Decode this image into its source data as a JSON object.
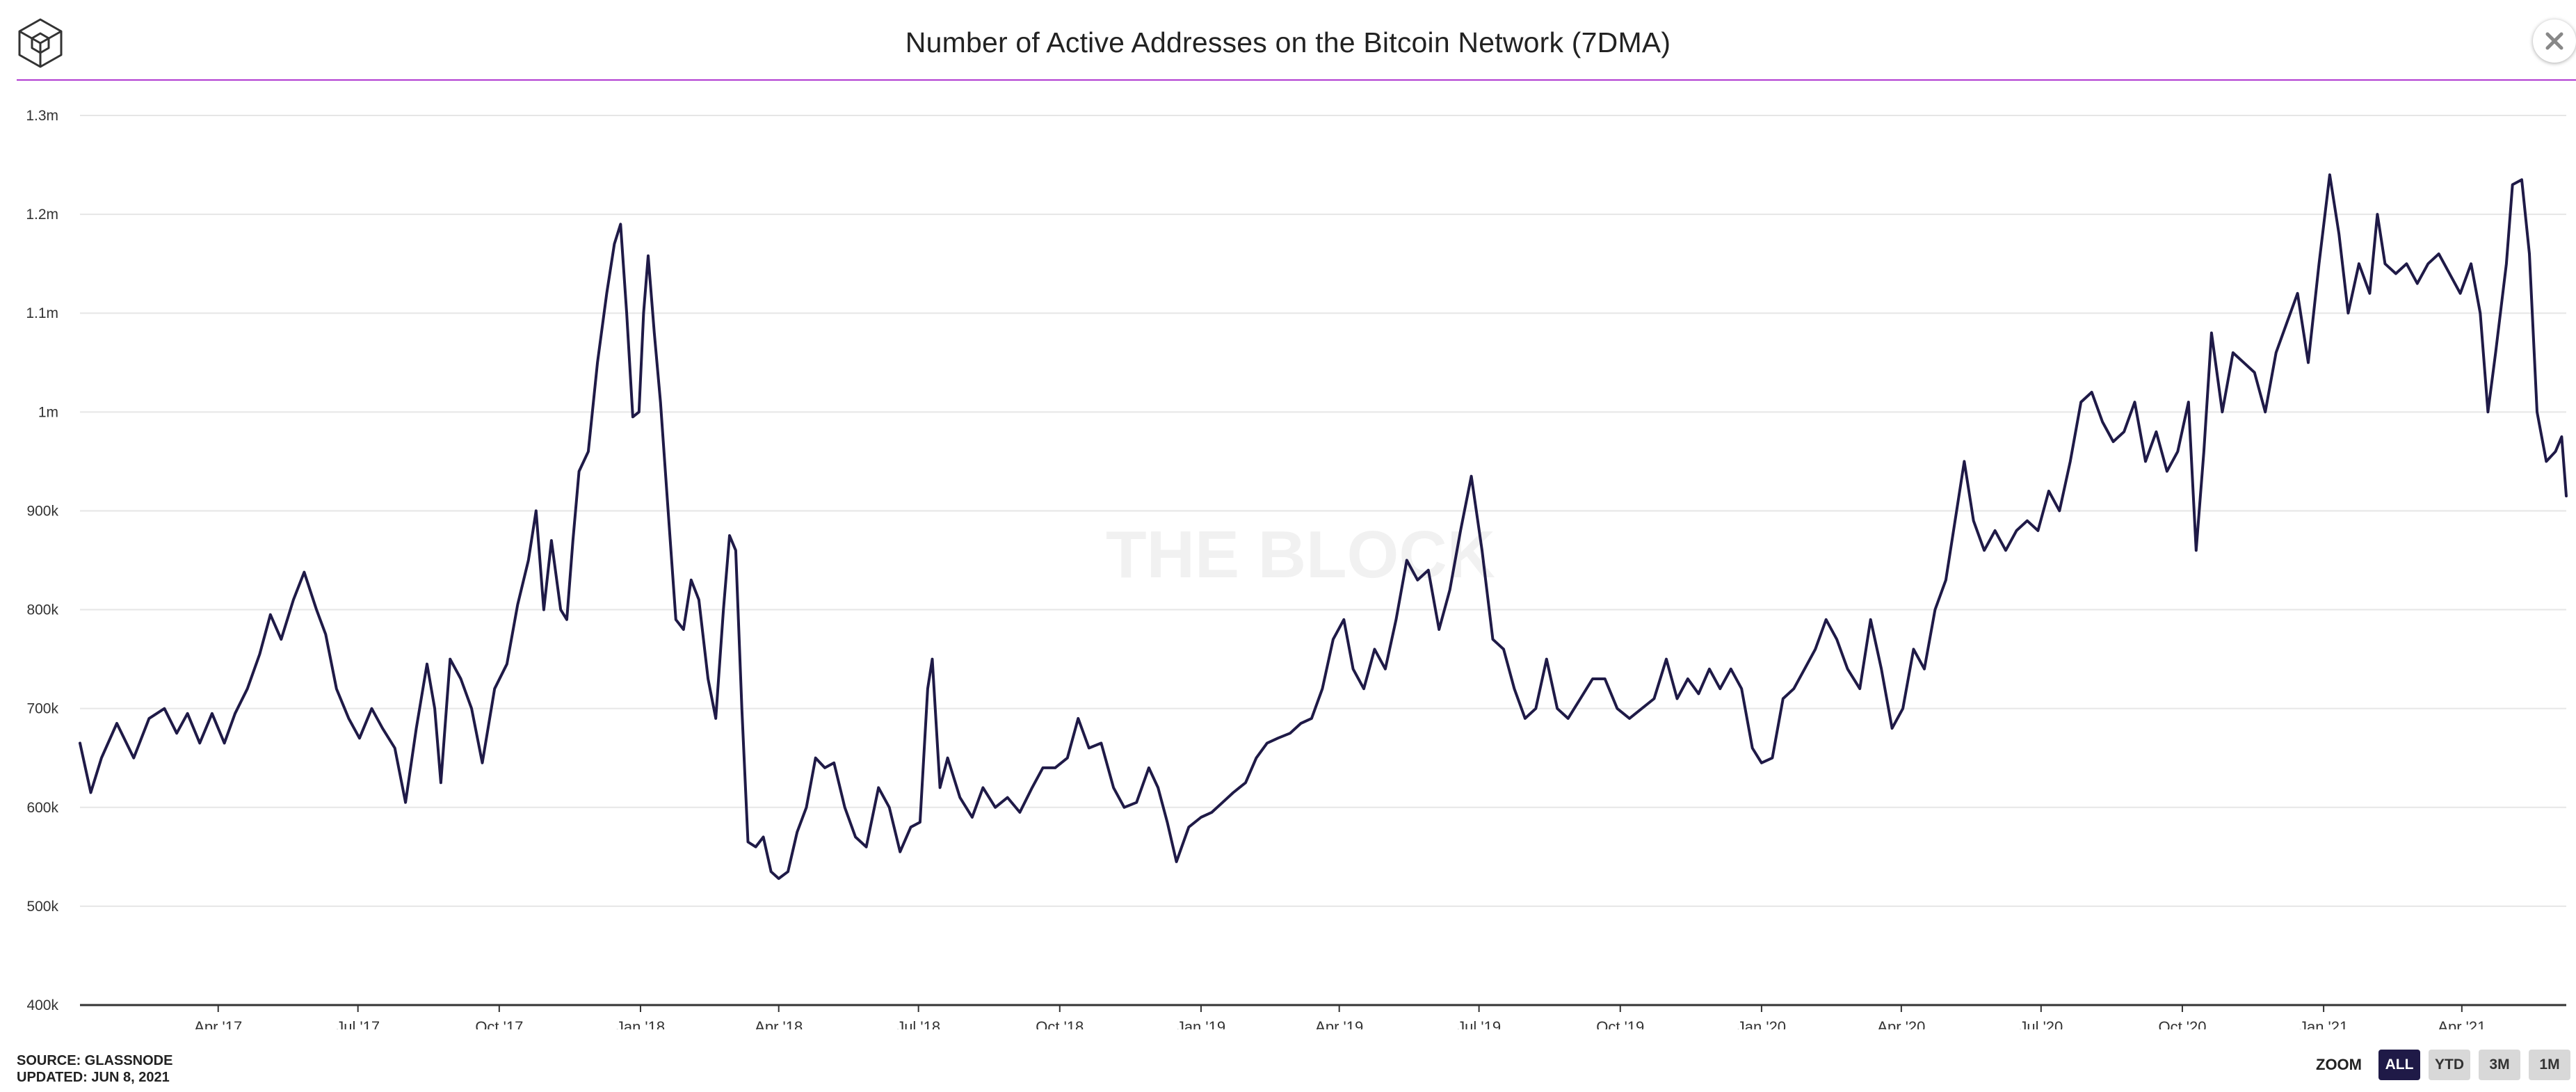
{
  "header": {
    "title": "Number of Active Addresses on the Bitcoin Network (7DMA)",
    "close_icon": "close-icon",
    "logo_icon": "the-block-cube-logo"
  },
  "colors": {
    "line": "#1f1a47",
    "accent_rule": "#b13bd1",
    "grid": "#e6e6e6",
    "axis": "#333333",
    "watermark": "#f1f1f1",
    "zoom_active": "#1f1a47",
    "zoom_inactive": "#d8d8d8"
  },
  "watermark": "THE BLOCK",
  "footer": {
    "source": "SOURCE: GLASSNODE",
    "updated": "UPDATED: JUN 8, 2021"
  },
  "zoom": {
    "label": "ZOOM",
    "options": [
      {
        "label": "ALL",
        "active": true
      },
      {
        "label": "YTD",
        "active": false
      },
      {
        "label": "3M",
        "active": false
      },
      {
        "label": "1M",
        "active": false
      }
    ]
  },
  "chart_data": {
    "type": "line",
    "title": "Number of Active Addresses on the Bitcoin Network (7DMA)",
    "xlabel": "",
    "ylabel": "",
    "xlim": [
      "2017-01-01",
      "2021-06-08"
    ],
    "ylim": [
      400000,
      1300000
    ],
    "y_ticks": [
      400000,
      500000,
      600000,
      700000,
      800000,
      900000,
      1000000,
      1100000,
      1200000,
      1300000
    ],
    "y_tick_labels": [
      "400k",
      "500k",
      "600k",
      "700k",
      "800k",
      "900k",
      "1m",
      "1.1m",
      "1.2m",
      "1.3m"
    ],
    "x_ticks": [
      "2017-04-01",
      "2017-07-01",
      "2017-10-01",
      "2018-01-01",
      "2018-04-01",
      "2018-07-01",
      "2018-10-01",
      "2019-01-01",
      "2019-04-01",
      "2019-07-01",
      "2019-10-01",
      "2020-01-01",
      "2020-04-01",
      "2020-07-01",
      "2020-10-01",
      "2021-01-01",
      "2021-04-01"
    ],
    "x_tick_labels": [
      "Apr '17",
      "Jul '17",
      "Oct '17",
      "Jan '18",
      "Apr '18",
      "Jul '18",
      "Oct '18",
      "Jan '19",
      "Apr '19",
      "Jul '19",
      "Oct '19",
      "Jan '20",
      "Apr '20",
      "Jul '20",
      "Oct '20",
      "Jan '21",
      "Apr '21"
    ],
    "grid": true,
    "series": [
      {
        "points": [
          [
            "2017-01-01",
            665000
          ],
          [
            "2017-01-08",
            615000
          ],
          [
            "2017-01-15",
            650000
          ],
          [
            "2017-01-25",
            685000
          ],
          [
            "2017-02-05",
            650000
          ],
          [
            "2017-02-15",
            690000
          ],
          [
            "2017-02-25",
            700000
          ],
          [
            "2017-03-05",
            675000
          ],
          [
            "2017-03-12",
            695000
          ],
          [
            "2017-03-20",
            665000
          ],
          [
            "2017-03-28",
            695000
          ],
          [
            "2017-04-05",
            665000
          ],
          [
            "2017-04-12",
            695000
          ],
          [
            "2017-04-20",
            720000
          ],
          [
            "2017-04-28",
            755000
          ],
          [
            "2017-05-05",
            795000
          ],
          [
            "2017-05-12",
            770000
          ],
          [
            "2017-05-20",
            810000
          ],
          [
            "2017-05-27",
            838000
          ],
          [
            "2017-06-04",
            800000
          ],
          [
            "2017-06-10",
            775000
          ],
          [
            "2017-06-17",
            720000
          ],
          [
            "2017-06-25",
            690000
          ],
          [
            "2017-07-02",
            670000
          ],
          [
            "2017-07-10",
            700000
          ],
          [
            "2017-07-17",
            680000
          ],
          [
            "2017-07-25",
            660000
          ],
          [
            "2017-08-01",
            605000
          ],
          [
            "2017-08-08",
            680000
          ],
          [
            "2017-08-15",
            745000
          ],
          [
            "2017-08-20",
            700000
          ],
          [
            "2017-08-24",
            625000
          ],
          [
            "2017-08-30",
            750000
          ],
          [
            "2017-09-06",
            730000
          ],
          [
            "2017-09-13",
            700000
          ],
          [
            "2017-09-20",
            645000
          ],
          [
            "2017-09-28",
            720000
          ],
          [
            "2017-10-06",
            745000
          ],
          [
            "2017-10-13",
            805000
          ],
          [
            "2017-10-20",
            850000
          ],
          [
            "2017-10-25",
            900000
          ],
          [
            "2017-10-30",
            800000
          ],
          [
            "2017-11-04",
            870000
          ],
          [
            "2017-11-10",
            800000
          ],
          [
            "2017-11-14",
            790000
          ],
          [
            "2017-11-18",
            870000
          ],
          [
            "2017-11-22",
            940000
          ],
          [
            "2017-11-28",
            960000
          ],
          [
            "2017-12-04",
            1050000
          ],
          [
            "2017-12-10",
            1120000
          ],
          [
            "2017-12-15",
            1170000
          ],
          [
            "2017-12-19",
            1190000
          ],
          [
            "2017-12-23",
            1100000
          ],
          [
            "2017-12-27",
            995000
          ],
          [
            "2017-12-31",
            1000000
          ],
          [
            "2018-01-03",
            1100000
          ],
          [
            "2018-01-06",
            1158000
          ],
          [
            "2018-01-10",
            1080000
          ],
          [
            "2018-01-14",
            1010000
          ],
          [
            "2018-01-19",
            900000
          ],
          [
            "2018-01-24",
            790000
          ],
          [
            "2018-01-29",
            780000
          ],
          [
            "2018-02-03",
            830000
          ],
          [
            "2018-02-08",
            810000
          ],
          [
            "2018-02-14",
            730000
          ],
          [
            "2018-02-19",
            690000
          ],
          [
            "2018-02-24",
            800000
          ],
          [
            "2018-02-28",
            875000
          ],
          [
            "2018-03-04",
            860000
          ],
          [
            "2018-03-08",
            700000
          ],
          [
            "2018-03-12",
            565000
          ],
          [
            "2018-03-17",
            560000
          ],
          [
            "2018-03-22",
            570000
          ],
          [
            "2018-03-27",
            535000
          ],
          [
            "2018-04-01",
            528000
          ],
          [
            "2018-04-07",
            535000
          ],
          [
            "2018-04-13",
            575000
          ],
          [
            "2018-04-19",
            600000
          ],
          [
            "2018-04-25",
            650000
          ],
          [
            "2018-05-01",
            640000
          ],
          [
            "2018-05-07",
            645000
          ],
          [
            "2018-05-14",
            600000
          ],
          [
            "2018-05-21",
            570000
          ],
          [
            "2018-05-28",
            560000
          ],
          [
            "2018-06-05",
            620000
          ],
          [
            "2018-06-12",
            600000
          ],
          [
            "2018-06-19",
            555000
          ],
          [
            "2018-06-26",
            580000
          ],
          [
            "2018-07-02",
            585000
          ],
          [
            "2018-07-07",
            720000
          ],
          [
            "2018-07-10",
            750000
          ],
          [
            "2018-07-15",
            620000
          ],
          [
            "2018-07-20",
            650000
          ],
          [
            "2018-07-28",
            610000
          ],
          [
            "2018-08-05",
            590000
          ],
          [
            "2018-08-12",
            620000
          ],
          [
            "2018-08-20",
            600000
          ],
          [
            "2018-08-28",
            610000
          ],
          [
            "2018-09-05",
            595000
          ],
          [
            "2018-09-13",
            620000
          ],
          [
            "2018-09-20",
            640000
          ],
          [
            "2018-09-28",
            640000
          ],
          [
            "2018-10-06",
            650000
          ],
          [
            "2018-10-13",
            690000
          ],
          [
            "2018-10-20",
            660000
          ],
          [
            "2018-10-28",
            665000
          ],
          [
            "2018-11-05",
            620000
          ],
          [
            "2018-11-12",
            600000
          ],
          [
            "2018-11-20",
            605000
          ],
          [
            "2018-11-28",
            640000
          ],
          [
            "2018-12-04",
            620000
          ],
          [
            "2018-12-10",
            585000
          ],
          [
            "2018-12-16",
            545000
          ],
          [
            "2018-12-24",
            580000
          ],
          [
            "2019-01-01",
            590000
          ],
          [
            "2019-01-08",
            595000
          ],
          [
            "2019-01-15",
            605000
          ],
          [
            "2019-01-22",
            615000
          ],
          [
            "2019-01-30",
            625000
          ],
          [
            "2019-02-06",
            650000
          ],
          [
            "2019-02-13",
            665000
          ],
          [
            "2019-02-20",
            670000
          ],
          [
            "2019-02-28",
            675000
          ],
          [
            "2019-03-07",
            685000
          ],
          [
            "2019-03-14",
            690000
          ],
          [
            "2019-03-21",
            720000
          ],
          [
            "2019-03-28",
            770000
          ],
          [
            "2019-04-04",
            790000
          ],
          [
            "2019-04-10",
            740000
          ],
          [
            "2019-04-17",
            720000
          ],
          [
            "2019-04-24",
            760000
          ],
          [
            "2019-05-01",
            740000
          ],
          [
            "2019-05-08",
            790000
          ],
          [
            "2019-05-15",
            850000
          ],
          [
            "2019-05-22",
            830000
          ],
          [
            "2019-05-29",
            840000
          ],
          [
            "2019-06-05",
            780000
          ],
          [
            "2019-06-12",
            820000
          ],
          [
            "2019-06-19",
            880000
          ],
          [
            "2019-06-26",
            935000
          ],
          [
            "2019-07-03",
            860000
          ],
          [
            "2019-07-10",
            770000
          ],
          [
            "2019-07-17",
            760000
          ],
          [
            "2019-07-24",
            720000
          ],
          [
            "2019-07-31",
            690000
          ],
          [
            "2019-08-07",
            700000
          ],
          [
            "2019-08-14",
            750000
          ],
          [
            "2019-08-21",
            700000
          ],
          [
            "2019-08-28",
            690000
          ],
          [
            "2019-09-05",
            710000
          ],
          [
            "2019-09-13",
            730000
          ],
          [
            "2019-09-21",
            730000
          ],
          [
            "2019-09-29",
            700000
          ],
          [
            "2019-10-07",
            690000
          ],
          [
            "2019-10-15",
            700000
          ],
          [
            "2019-10-23",
            710000
          ],
          [
            "2019-10-31",
            750000
          ],
          [
            "2019-11-07",
            710000
          ],
          [
            "2019-11-14",
            730000
          ],
          [
            "2019-11-21",
            715000
          ],
          [
            "2019-11-28",
            740000
          ],
          [
            "2019-12-05",
            720000
          ],
          [
            "2019-12-12",
            740000
          ],
          [
            "2019-12-19",
            720000
          ],
          [
            "2019-12-26",
            660000
          ],
          [
            "2020-01-01",
            645000
          ],
          [
            "2020-01-08",
            650000
          ],
          [
            "2020-01-15",
            710000
          ],
          [
            "2020-01-22",
            720000
          ],
          [
            "2020-01-29",
            740000
          ],
          [
            "2020-02-05",
            760000
          ],
          [
            "2020-02-12",
            790000
          ],
          [
            "2020-02-19",
            770000
          ],
          [
            "2020-02-26",
            740000
          ],
          [
            "2020-03-05",
            720000
          ],
          [
            "2020-03-12",
            790000
          ],
          [
            "2020-03-19",
            740000
          ],
          [
            "2020-03-26",
            680000
          ],
          [
            "2020-04-02",
            700000
          ],
          [
            "2020-04-09",
            760000
          ],
          [
            "2020-04-16",
            740000
          ],
          [
            "2020-04-23",
            800000
          ],
          [
            "2020-04-30",
            830000
          ],
          [
            "2020-05-07",
            900000
          ],
          [
            "2020-05-12",
            950000
          ],
          [
            "2020-05-18",
            890000
          ],
          [
            "2020-05-25",
            860000
          ],
          [
            "2020-06-01",
            880000
          ],
          [
            "2020-06-08",
            860000
          ],
          [
            "2020-06-15",
            880000
          ],
          [
            "2020-06-22",
            890000
          ],
          [
            "2020-06-29",
            880000
          ],
          [
            "2020-07-06",
            920000
          ],
          [
            "2020-07-13",
            900000
          ],
          [
            "2020-07-20",
            950000
          ],
          [
            "2020-07-27",
            1010000
          ],
          [
            "2020-08-03",
            1020000
          ],
          [
            "2020-08-10",
            990000
          ],
          [
            "2020-08-17",
            970000
          ],
          [
            "2020-08-24",
            980000
          ],
          [
            "2020-08-31",
            1010000
          ],
          [
            "2020-09-07",
            950000
          ],
          [
            "2020-09-14",
            980000
          ],
          [
            "2020-09-21",
            940000
          ],
          [
            "2020-09-28",
            960000
          ],
          [
            "2020-10-05",
            1010000
          ],
          [
            "2020-10-10",
            860000
          ],
          [
            "2020-10-15",
            960000
          ],
          [
            "2020-10-20",
            1080000
          ],
          [
            "2020-10-27",
            1000000
          ],
          [
            "2020-11-03",
            1060000
          ],
          [
            "2020-11-10",
            1050000
          ],
          [
            "2020-11-17",
            1040000
          ],
          [
            "2020-11-24",
            1000000
          ],
          [
            "2020-12-01",
            1060000
          ],
          [
            "2020-12-08",
            1090000
          ],
          [
            "2020-12-15",
            1120000
          ],
          [
            "2020-12-22",
            1050000
          ],
          [
            "2020-12-29",
            1150000
          ],
          [
            "2021-01-05",
            1240000
          ],
          [
            "2021-01-11",
            1180000
          ],
          [
            "2021-01-17",
            1100000
          ],
          [
            "2021-01-24",
            1150000
          ],
          [
            "2021-01-31",
            1120000
          ],
          [
            "2021-02-05",
            1200000
          ],
          [
            "2021-02-10",
            1150000
          ],
          [
            "2021-02-17",
            1140000
          ],
          [
            "2021-02-24",
            1150000
          ],
          [
            "2021-03-03",
            1130000
          ],
          [
            "2021-03-10",
            1150000
          ],
          [
            "2021-03-17",
            1160000
          ],
          [
            "2021-03-24",
            1140000
          ],
          [
            "2021-03-31",
            1120000
          ],
          [
            "2021-04-07",
            1150000
          ],
          [
            "2021-04-13",
            1100000
          ],
          [
            "2021-04-18",
            1000000
          ],
          [
            "2021-04-23",
            1060000
          ],
          [
            "2021-04-30",
            1150000
          ],
          [
            "2021-05-04",
            1230000
          ],
          [
            "2021-05-10",
            1235000
          ],
          [
            "2021-05-15",
            1160000
          ],
          [
            "2021-05-20",
            1000000
          ],
          [
            "2021-05-26",
            950000
          ],
          [
            "2021-06-01",
            960000
          ],
          [
            "2021-06-05",
            975000
          ],
          [
            "2021-06-08",
            915000
          ]
        ]
      }
    ]
  }
}
